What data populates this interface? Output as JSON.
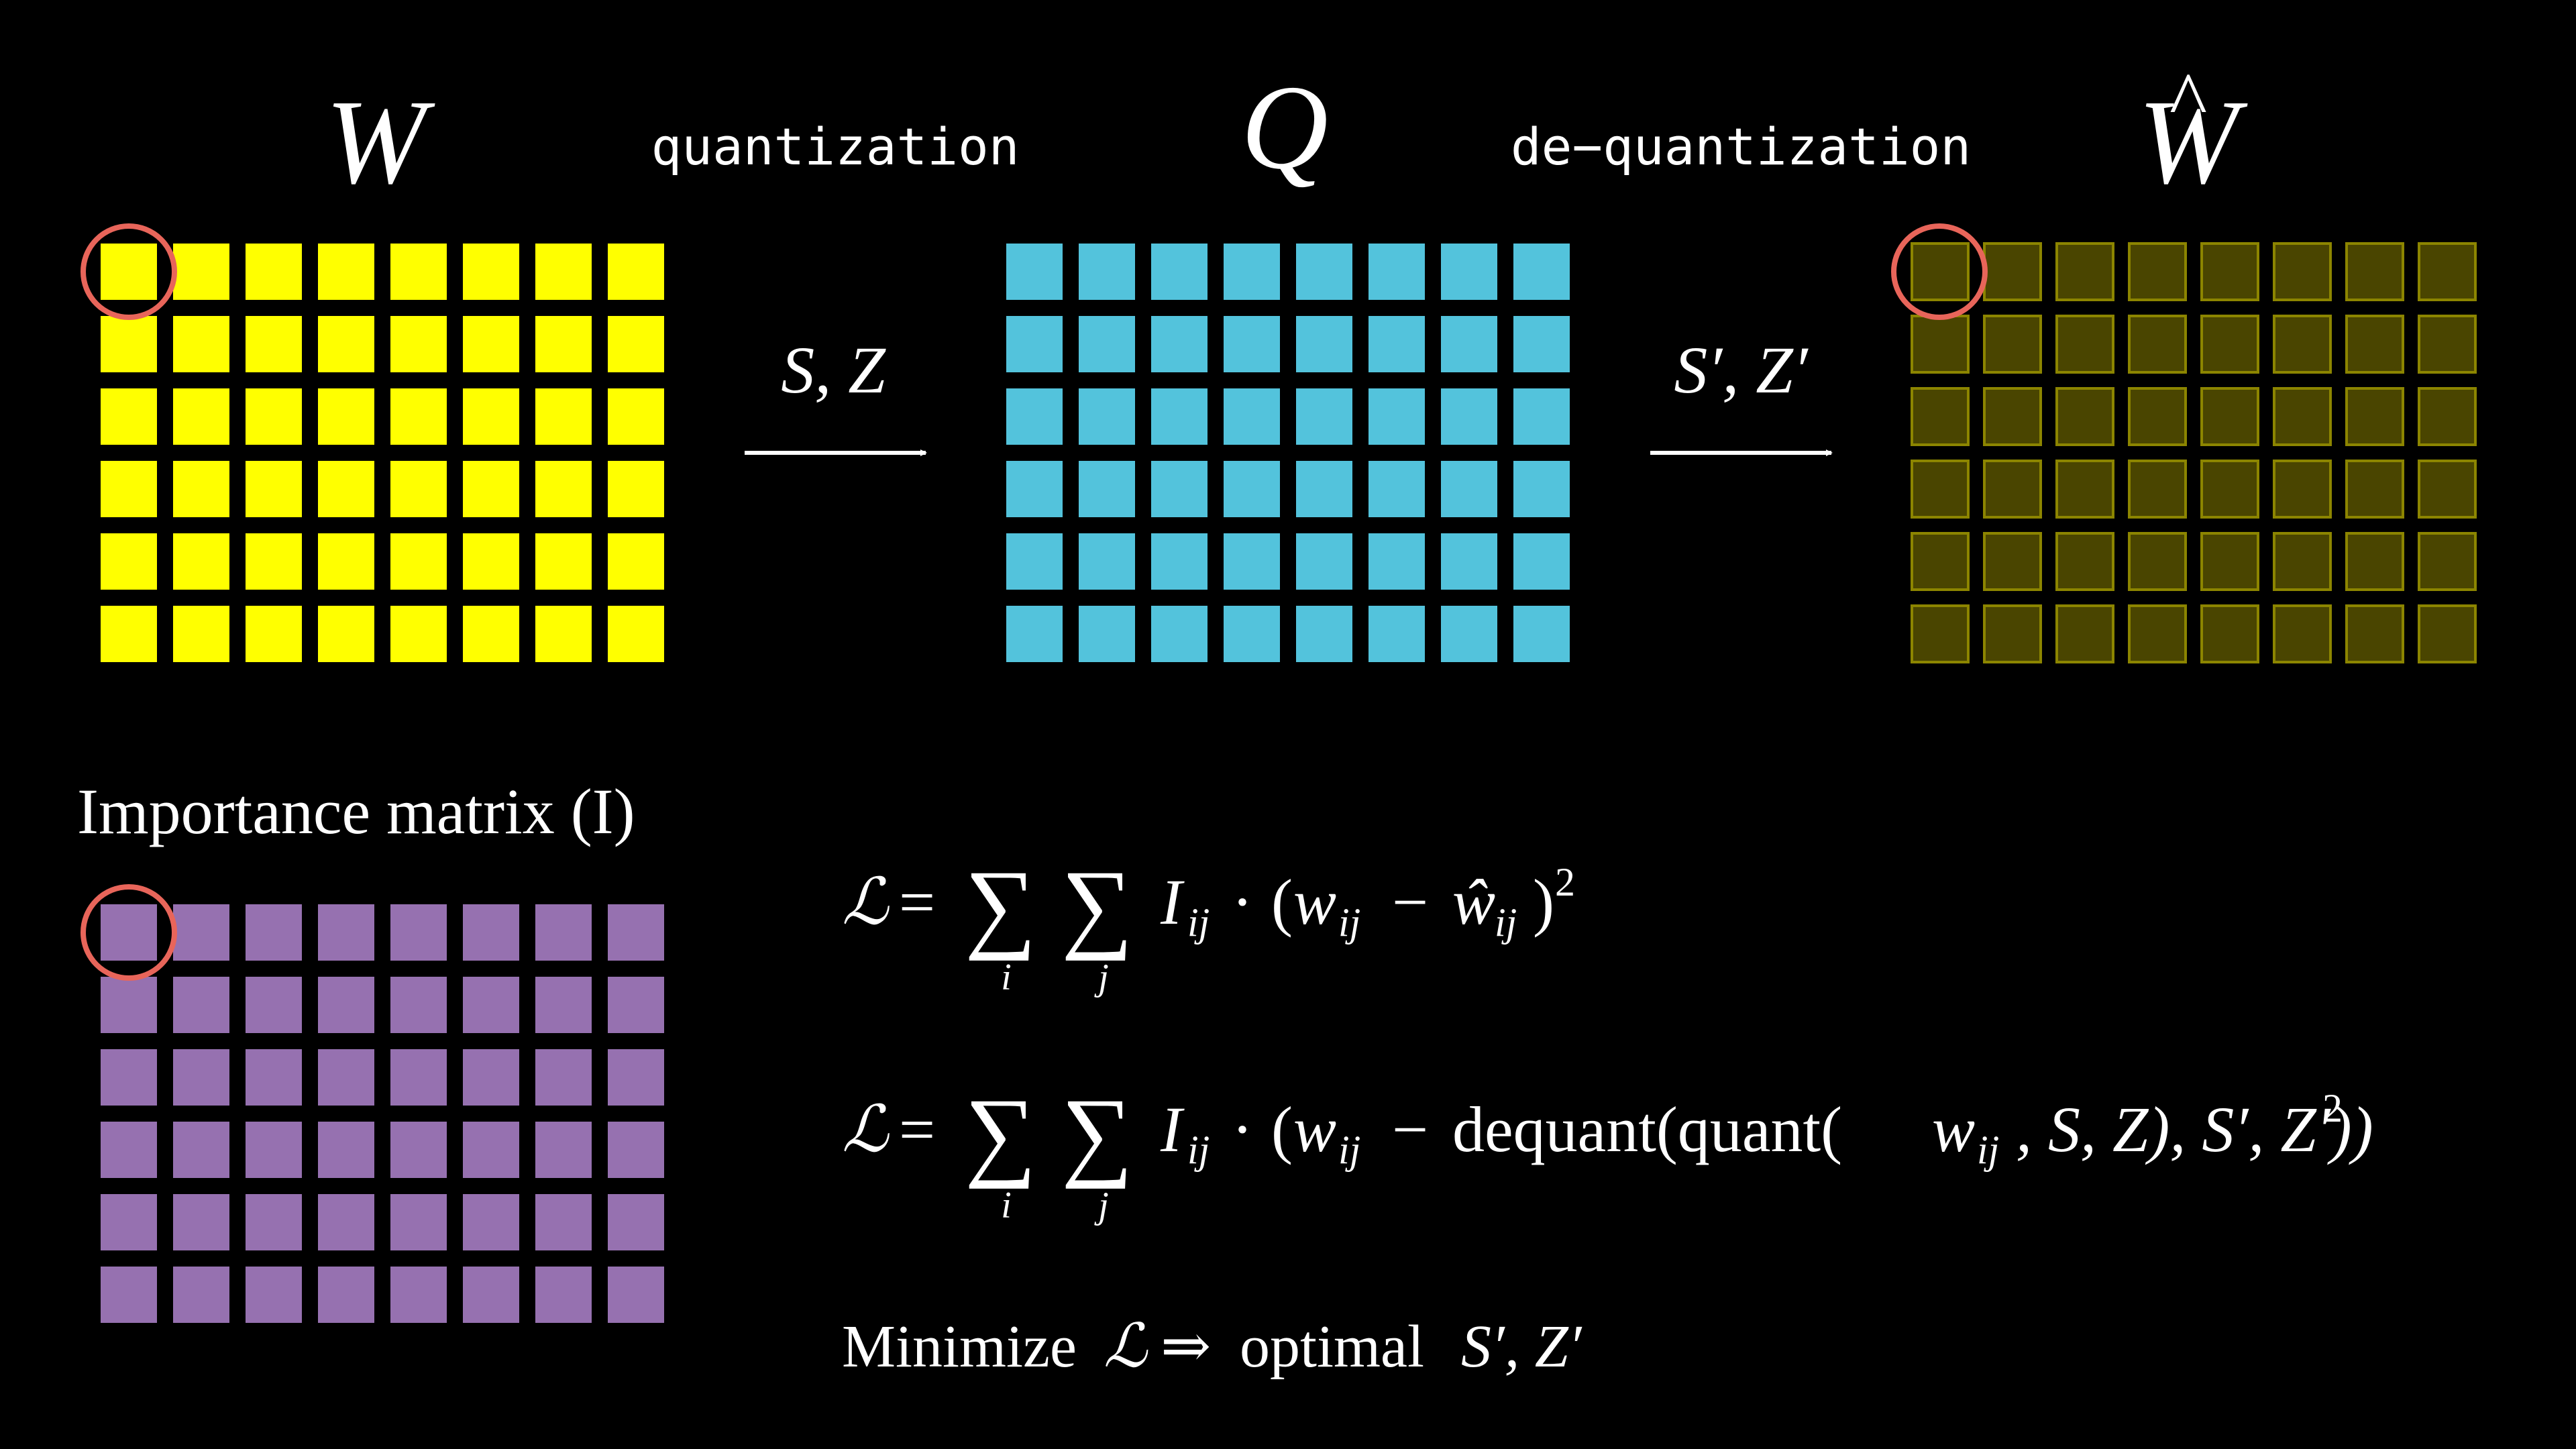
{
  "colors": {
    "background": "#000000",
    "weights": "#ffff00",
    "quantized": "#53c3dc",
    "dequantized_fill": "#4a4500",
    "dequantized_border": "#8c8500",
    "importance": "#9671b0",
    "highlight_ring": "#e8655a",
    "text": "#ffffff"
  },
  "matrices": {
    "rows": 6,
    "cols": 8,
    "w": {
      "symbol": "W"
    },
    "q": {
      "symbol": "Q"
    },
    "w_hat": {
      "symbol": "W",
      "accent": "^"
    },
    "importance": {
      "title": "Importance matrix (I)"
    }
  },
  "arrows": {
    "quantize": {
      "label": "quantization",
      "params": "S, Z"
    },
    "dequantize": {
      "label": "de−quantization",
      "params": "S′, Z′"
    }
  },
  "equations": {
    "eq1": {
      "lhs": "ℒ",
      "eq": "=",
      "sum": "∑",
      "sub_i": "i",
      "sub_j": "j",
      "term_I": "I",
      "term_I_sub": "ij",
      "dot": "·",
      "open": "(",
      "w": "w",
      "w_sub": "ij",
      "minus": "−",
      "w_hat": "ŵ",
      "w_hat_sub": "ij",
      "close": ")",
      "power": "2"
    },
    "eq2": {
      "lhs": "ℒ",
      "eq": "=",
      "sum": "∑",
      "sub_i": "i",
      "sub_j": "j",
      "term_I": "I",
      "term_I_sub": "ij",
      "dot": "·",
      "open": "(",
      "w": "w",
      "w_sub": "ij",
      "minus": "−",
      "dequant": "dequant(quant(",
      "w2": "w",
      "w2_sub": "ij",
      "args": ", S, Z), S′, Z′))",
      "power": "2"
    },
    "objective": {
      "prefix": "Minimize",
      "symbol": "ℒ",
      "implies": "⇒",
      "text": "optimal",
      "params": "S′, Z′"
    }
  },
  "highlight": {
    "row": 0,
    "col": 0
  }
}
